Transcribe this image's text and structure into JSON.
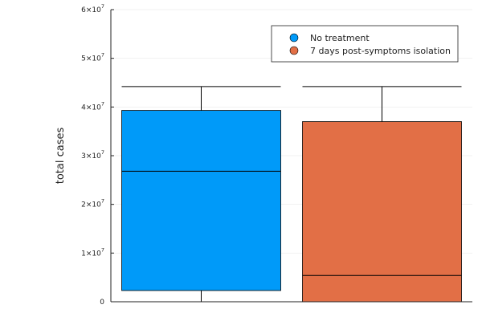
{
  "chart_data": {
    "type": "boxplot",
    "ylabel": "total cases",
    "ylim": [
      0,
      60000000
    ],
    "y_ticks": [
      {
        "value": 0,
        "mantissa": "0",
        "exponent": ""
      },
      {
        "value": 10000000,
        "mantissa": "1×10",
        "exponent": "7"
      },
      {
        "value": 20000000,
        "mantissa": "2×10",
        "exponent": "7"
      },
      {
        "value": 30000000,
        "mantissa": "3×10",
        "exponent": "7"
      },
      {
        "value": 40000000,
        "mantissa": "4×10",
        "exponent": "7"
      },
      {
        "value": 50000000,
        "mantissa": "5×10",
        "exponent": "7"
      },
      {
        "value": 60000000,
        "mantissa": "6×10",
        "exponent": "7"
      }
    ],
    "grid": true,
    "legend_position": "top-right",
    "series": [
      {
        "name": "No treatment",
        "color": "#009AF9",
        "whisker_low": 0,
        "q1": 2300000,
        "median": 26800000,
        "q3": 39300000,
        "whisker_high": 44200000
      },
      {
        "name": "7 days post-symptoms isolation",
        "color": "#E26F46",
        "whisker_low": 0,
        "q1": 0,
        "median": 5400000,
        "q3": 37000000,
        "whisker_high": 44200000
      }
    ]
  }
}
